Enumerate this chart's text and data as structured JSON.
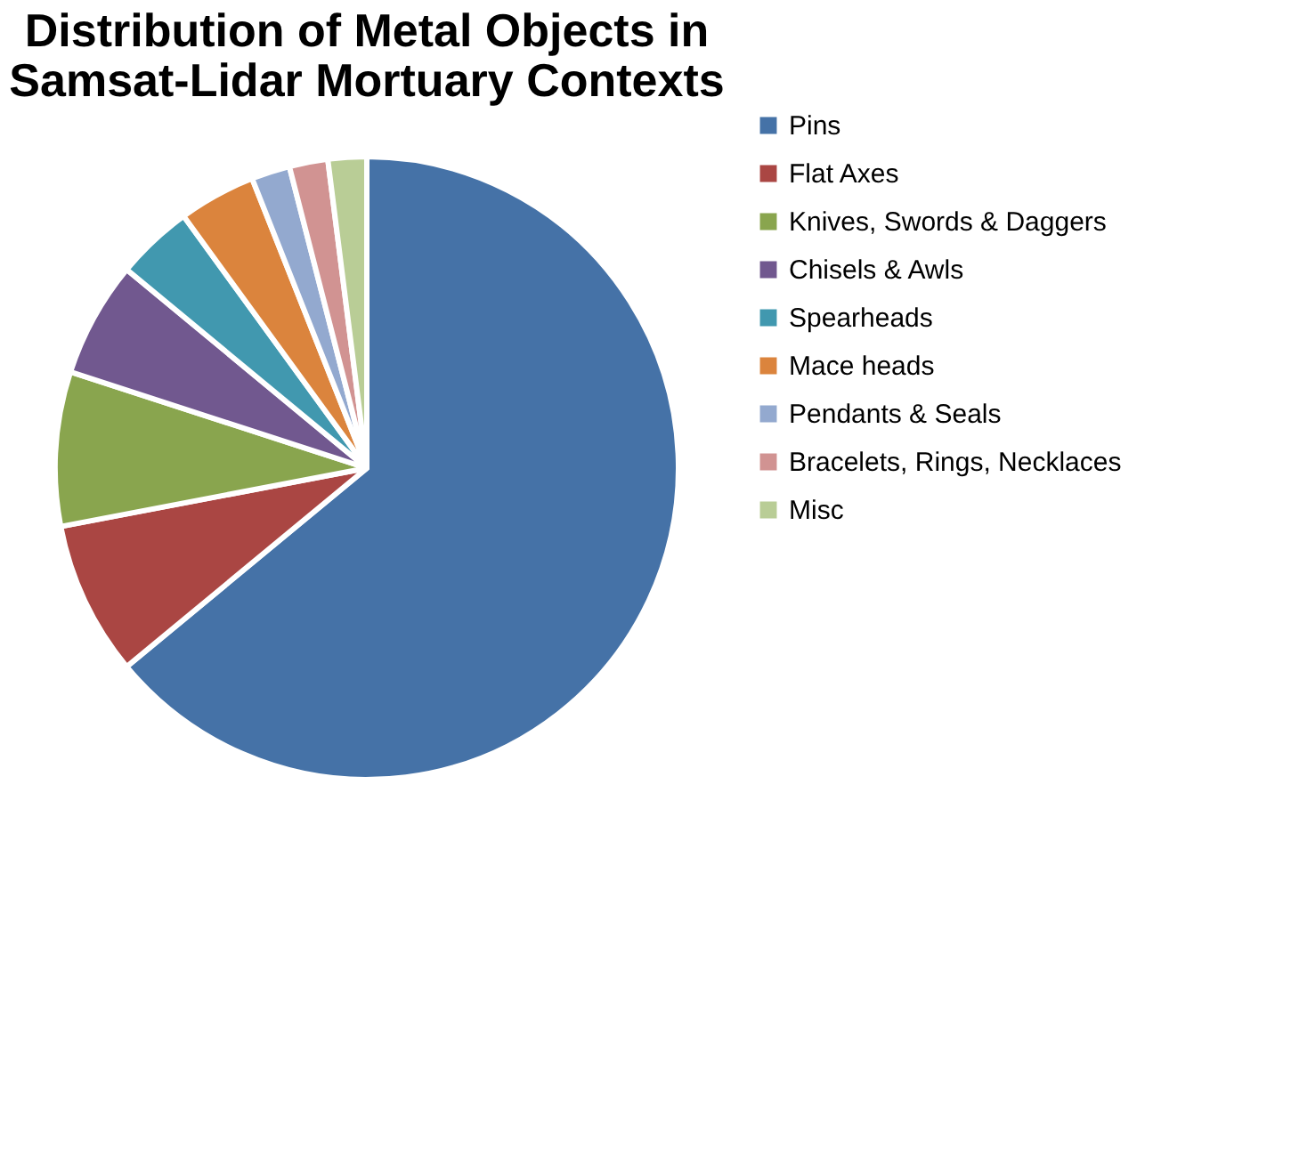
{
  "chart_data": {
    "type": "pie",
    "title": "Distribution of Metal Objects in Samsat-Lidar Mortuary Contexts",
    "categories": [
      "Pins",
      "Flat Axes",
      "Knives, Swords & Daggers",
      "Chisels & Awls",
      "Spearheads",
      "Mace heads",
      "Pendants & Seals",
      "Bracelets, Rings, Necklaces",
      "Misc"
    ],
    "values": [
      64,
      8,
      8,
      6,
      4,
      4,
      2,
      2,
      2
    ],
    "colors": [
      "#4572a7",
      "#aa4643",
      "#89a54e",
      "#71588f",
      "#4198af",
      "#db843d",
      "#93a9cf",
      "#d19392",
      "#b9cd96"
    ],
    "legend": "right"
  }
}
